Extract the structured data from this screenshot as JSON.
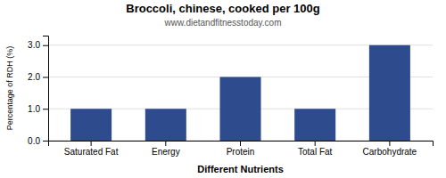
{
  "chart_data": {
    "type": "bar",
    "title": "Broccoli, chinese, cooked per 100g",
    "subtitle": "www.dietandfitnesstoday.com",
    "xlabel": "Different Nutrients",
    "ylabel": "Percentage of RDH (%)",
    "categories": [
      "Saturated Fat",
      "Energy",
      "Protein",
      "Total Fat",
      "Carbohydrate"
    ],
    "values": [
      1.0,
      1.0,
      2.0,
      1.0,
      3.0
    ],
    "color": "#2e4b8e",
    "ylim": [
      0,
      3.3
    ],
    "yticks": [
      {
        "value": 0.0,
        "label": "0.0"
      },
      {
        "value": 1.0,
        "label": "1.0"
      },
      {
        "value": 2.0,
        "label": "2.0"
      },
      {
        "value": 3.0,
        "label": "3.0"
      }
    ],
    "grid": true
  }
}
